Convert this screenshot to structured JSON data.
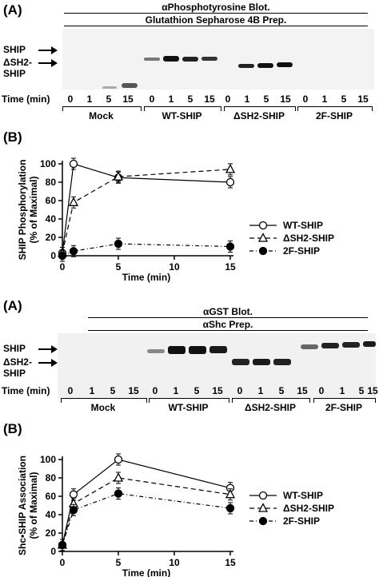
{
  "panel1": {
    "label": "(A)",
    "header1": "αPhosphotyrosine Blot.",
    "header2": "Glutathion Sepharose 4B Prep.",
    "markers": [
      "SHIP",
      "ΔSH2-",
      "SHIP"
    ],
    "time_label": "Time (min)",
    "times": [
      "0",
      "1",
      "5",
      "15",
      "0",
      "1",
      "5",
      "15",
      "0",
      "1",
      "5",
      "15",
      "0",
      "1",
      "5",
      "15"
    ],
    "groups": [
      "Mock",
      "WT-SHIP",
      "ΔSH2-SHIP",
      "2F-SHIP"
    ]
  },
  "panel2": {
    "label": "(B)",
    "ylabel1": "SHIP Phosphorylation",
    "ylabel2": "(% of Maximal)",
    "xlabel": "Time (min)",
    "yticks": [
      "0",
      "20",
      "40",
      "60",
      "80",
      "100"
    ],
    "xticks": [
      "0",
      "5",
      "10",
      "15"
    ],
    "legend": [
      "WT-SHIP",
      "ΔSH2-SHIP",
      "2F-SHIP"
    ]
  },
  "panel3": {
    "label": "(A)",
    "header1": "αGST Blot.",
    "header2": "αShc Prep.",
    "markers": [
      "SHIP",
      "ΔSH2-",
      "SHIP"
    ],
    "time_label": "Time (min)",
    "times": [
      "0",
      "1",
      "5",
      "15",
      "0",
      "1",
      "5",
      "15",
      "0",
      "1",
      "5",
      "15",
      "0",
      "1",
      "5",
      "15"
    ],
    "groups": [
      "Mock",
      "WT-SHIP",
      "ΔSH2-SHIP",
      "2F-SHIP"
    ]
  },
  "panel4": {
    "label": "(B)",
    "ylabel1": "Shc•SHIP Association",
    "ylabel2": "(% of Maximal)",
    "xlabel": "Time (min)",
    "yticks": [
      "0",
      "20",
      "40",
      "60",
      "80",
      "100"
    ],
    "xticks": [
      "0",
      "5",
      "10",
      "15"
    ],
    "legend": [
      "WT-SHIP",
      "ΔSH2-SHIP",
      "2F-SHIP"
    ]
  },
  "chart_data": [
    {
      "type": "line",
      "x": [
        0,
        1,
        5,
        15
      ],
      "series": [
        {
          "name": "WT-SHIP",
          "values": [
            3,
            100,
            85,
            80
          ]
        },
        {
          "name": "ΔSH2-SHIP",
          "values": [
            3,
            58,
            86,
            94
          ]
        },
        {
          "name": "2F-SHIP",
          "values": [
            0,
            5,
            13,
            10
          ]
        }
      ],
      "xlabel": "Time (min)",
      "ylabel": "SHIP Phosphorylation (% of Maximal)",
      "xlim": [
        0,
        15
      ],
      "ylim": [
        0,
        100
      ]
    },
    {
      "type": "line",
      "x": [
        0,
        1,
        5,
        15
      ],
      "series": [
        {
          "name": "WT-SHIP",
          "values": [
            7,
            62,
            100,
            69
          ]
        },
        {
          "name": "ΔSH2-SHIP",
          "values": [
            7,
            52,
            80,
            62
          ]
        },
        {
          "name": "2F-SHIP",
          "values": [
            7,
            45,
            63,
            47
          ]
        }
      ],
      "xlabel": "Time (min)",
      "ylabel": "Shc•SHIP Association (% of Maximal)",
      "xlim": [
        0,
        15
      ],
      "ylim": [
        0,
        100
      ]
    }
  ]
}
